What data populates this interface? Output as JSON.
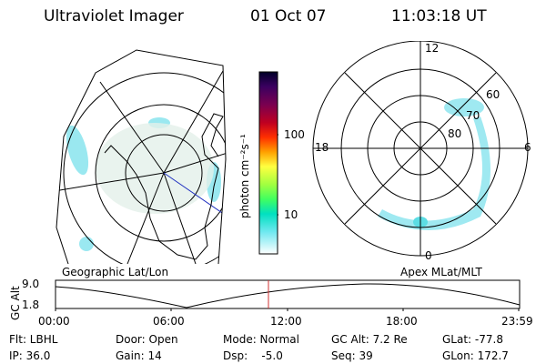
{
  "header": {
    "instrument": "Ultraviolet Imager",
    "date": "01 Oct 07",
    "time": "11:03:18 UT"
  },
  "polar_grid": {
    "mlt_labels": {
      "top": "12",
      "left": "18",
      "right": "6",
      "bottom": "0"
    },
    "lat_labels": [
      "60",
      "70",
      "80"
    ]
  },
  "colorbar": {
    "unit_label": "photon cm⁻²s⁻¹",
    "ticks": [
      "100",
      "10"
    ],
    "colors": [
      "#000028",
      "#3a0060",
      "#7a0050",
      "#b00020",
      "#e00010",
      "#ff5000",
      "#ffb000",
      "#ffff40",
      "#b0ff40",
      "#40ff60",
      "#00e0c0",
      "#60e8f0",
      "#c0f4f8",
      "#ffffff"
    ]
  },
  "map_labels": {
    "geographic": "Geographic Lat/Lon",
    "apex": "Apex MLat/MLT"
  },
  "timeline": {
    "axis_title": "GC Alt",
    "y_max": "9.0",
    "y_min": "1.8",
    "x_ticks": [
      "00:00",
      "06:00",
      "12:00",
      "18:00",
      "23:59"
    ],
    "current_marker_color": "#d03030"
  },
  "info": {
    "flt": "Flt: LBHL",
    "ip": "IP: 36.0",
    "door": "Door: Open",
    "gain": "Gain: 14",
    "mode": "Mode: Normal",
    "dsp": "Dsp:    -5.0",
    "gcalt": "GC Alt: 7.2 Re",
    "seq": "Seq: 39",
    "glat": "GLat: -77.8",
    "glon": "GLon: 172.7"
  }
}
